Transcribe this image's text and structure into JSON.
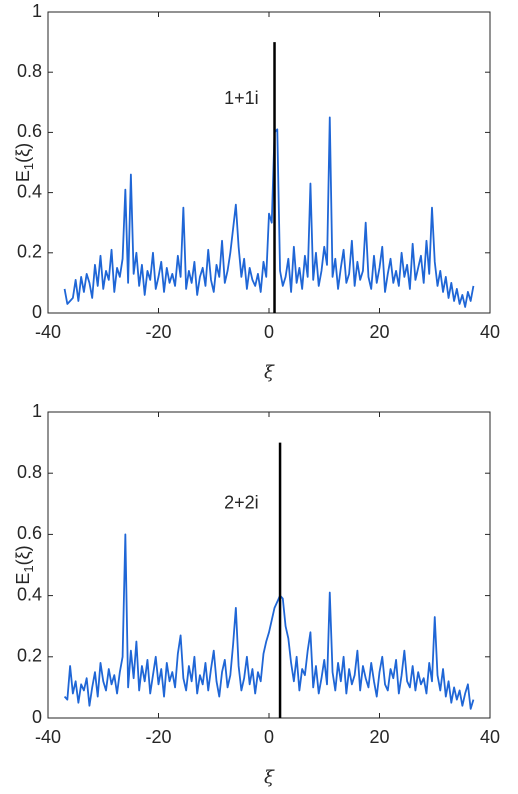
{
  "chart_data": [
    {
      "type": "line",
      "xlabel": "ξ",
      "ylabel": [
        "E",
        "1",
        "(ξ)"
      ],
      "annotation": {
        "text": "1+1i",
        "x": -5,
        "y": 0.71
      },
      "xlim": [
        -40,
        40
      ],
      "xticks": [
        -40,
        -20,
        0,
        20,
        40
      ],
      "ylim": [
        0,
        1
      ],
      "yticks": [
        0,
        0.2,
        0.4,
        0.6,
        0.8,
        1
      ],
      "x": [
        -37,
        -36.5,
        -36,
        -35.5,
        -35,
        -34.5,
        -34,
        -33.5,
        -33,
        -32.5,
        -32,
        -31.5,
        -31,
        -30.5,
        -30,
        -29.5,
        -29,
        -28.5,
        -28,
        -27.5,
        -27,
        -26.5,
        -26,
        -25.5,
        -25,
        -24.5,
        -24,
        -23.5,
        -23,
        -22.5,
        -22,
        -21.5,
        -21,
        -20.5,
        -20,
        -19.5,
        -19,
        -18.5,
        -18,
        -17.5,
        -17,
        -16.5,
        -16,
        -15.5,
        -15,
        -14.5,
        -14,
        -13.5,
        -13,
        -12.5,
        -12,
        -11.5,
        -11,
        -10.5,
        -10,
        -9.5,
        -9,
        -8.5,
        -8,
        -7.5,
        -7,
        -6.5,
        -6,
        -5.5,
        -5,
        -4.5,
        -4,
        -3.5,
        -3,
        -2.5,
        -2,
        -1.5,
        -1,
        -0.5,
        0,
        0.5,
        1,
        1.5,
        2,
        2.5,
        3,
        3.5,
        4,
        4.5,
        5,
        5.5,
        6,
        6.5,
        7,
        7.5,
        8,
        8.5,
        9,
        9.5,
        10,
        10.5,
        11,
        11.5,
        12,
        12.5,
        13,
        13.5,
        14,
        14.5,
        15,
        15.5,
        16,
        16.5,
        17,
        17.5,
        18,
        18.5,
        19,
        19.5,
        20,
        20.5,
        21,
        21.5,
        22,
        22.5,
        23,
        23.5,
        24,
        24.5,
        25,
        25.5,
        26,
        26.5,
        27,
        27.5,
        28,
        28.5,
        29,
        29.5,
        30,
        30.5,
        31,
        31.5,
        32,
        32.5,
        33,
        33.5,
        34,
        34.5,
        35,
        35.5,
        36,
        36.5,
        37
      ],
      "series": [
        {
          "color": "#1f66d6",
          "values": [
            0.08,
            0.03,
            0.04,
            0.05,
            0.11,
            0.04,
            0.12,
            0.07,
            0.13,
            0.1,
            0.05,
            0.16,
            0.09,
            0.19,
            0.08,
            0.14,
            0.11,
            0.21,
            0.07,
            0.15,
            0.12,
            0.18,
            0.41,
            0.1,
            0.46,
            0.13,
            0.2,
            0.09,
            0.16,
            0.06,
            0.14,
            0.11,
            0.2,
            0.08,
            0.12,
            0.17,
            0.07,
            0.15,
            0.1,
            0.13,
            0.09,
            0.19,
            0.12,
            0.35,
            0.08,
            0.14,
            0.1,
            0.17,
            0.06,
            0.12,
            0.15,
            0.09,
            0.21,
            0.11,
            0.07,
            0.16,
            0.12,
            0.24,
            0.1,
            0.14,
            0.2,
            0.28,
            0.36,
            0.22,
            0.12,
            0.18,
            0.08,
            0.15,
            0.11,
            0.09,
            0.13,
            0.07,
            0.17,
            0.12,
            0.33,
            0.3,
            0.6,
            0.61,
            0.14,
            0.09,
            0.12,
            0.18,
            0.07,
            0.22,
            0.1,
            0.15,
            0.08,
            0.19,
            0.12,
            0.43,
            0.11,
            0.2,
            0.09,
            0.14,
            0.22,
            0.16,
            0.65,
            0.12,
            0.18,
            0.08,
            0.15,
            0.21,
            0.1,
            0.13,
            0.24,
            0.09,
            0.17,
            0.11,
            0.14,
            0.3,
            0.12,
            0.08,
            0.19,
            0.1,
            0.15,
            0.22,
            0.07,
            0.13,
            0.18,
            0.1,
            0.14,
            0.09,
            0.2,
            0.12,
            0.16,
            0.08,
            0.23,
            0.11,
            0.15,
            0.19,
            0.1,
            0.24,
            0.13,
            0.35,
            0.17,
            0.09,
            0.14,
            0.07,
            0.12,
            0.05,
            0.1,
            0.04,
            0.08,
            0.03,
            0.06,
            0.02,
            0.07,
            0.04,
            0.09
          ]
        },
        {
          "color": "#000000",
          "x": [
            1,
            1
          ],
          "values": [
            0,
            0.9
          ]
        }
      ]
    },
    {
      "type": "line",
      "xlabel": "ξ",
      "ylabel": [
        "E",
        "1",
        "(ξ)"
      ],
      "annotation": {
        "text": "2+2i",
        "x": -5,
        "y": 0.7
      },
      "xlim": [
        -40,
        40
      ],
      "xticks": [
        -40,
        -20,
        0,
        20,
        40
      ],
      "ylim": [
        0,
        1
      ],
      "yticks": [
        0,
        0.2,
        0.4,
        0.6,
        0.8,
        1
      ],
      "x": [
        -37,
        -36.5,
        -36,
        -35.5,
        -35,
        -34.5,
        -34,
        -33.5,
        -33,
        -32.5,
        -32,
        -31.5,
        -31,
        -30.5,
        -30,
        -29.5,
        -29,
        -28.5,
        -28,
        -27.5,
        -27,
        -26.5,
        -26,
        -25.5,
        -25,
        -24.5,
        -24,
        -23.5,
        -23,
        -22.5,
        -22,
        -21.5,
        -21,
        -20.5,
        -20,
        -19.5,
        -19,
        -18.5,
        -18,
        -17.5,
        -17,
        -16.5,
        -16,
        -15.5,
        -15,
        -14.5,
        -14,
        -13.5,
        -13,
        -12.5,
        -12,
        -11.5,
        -11,
        -10.5,
        -10,
        -9.5,
        -9,
        -8.5,
        -8,
        -7.5,
        -7,
        -6.5,
        -6,
        -5.5,
        -5,
        -4.5,
        -4,
        -3.5,
        -3,
        -2.5,
        -2,
        -1.5,
        -1,
        -0.5,
        0,
        0.5,
        1,
        1.5,
        2,
        2.5,
        3,
        3.5,
        4,
        4.5,
        5,
        5.5,
        6,
        6.5,
        7,
        7.5,
        8,
        8.5,
        9,
        9.5,
        10,
        10.5,
        11,
        11.5,
        12,
        12.5,
        13,
        13.5,
        14,
        14.5,
        15,
        15.5,
        16,
        16.5,
        17,
        17.5,
        18,
        18.5,
        19,
        19.5,
        20,
        20.5,
        21,
        21.5,
        22,
        22.5,
        23,
        23.5,
        24,
        24.5,
        25,
        25.5,
        26,
        26.5,
        27,
        27.5,
        28,
        28.5,
        29,
        29.5,
        30,
        30.5,
        31,
        31.5,
        32,
        32.5,
        33,
        33.5,
        34,
        34.5,
        35,
        35.5,
        36,
        36.5,
        37
      ],
      "series": [
        {
          "color": "#1f66d6",
          "values": [
            0.07,
            0.06,
            0.17,
            0.08,
            0.12,
            0.05,
            0.11,
            0.09,
            0.13,
            0.04,
            0.1,
            0.15,
            0.07,
            0.18,
            0.12,
            0.09,
            0.16,
            0.11,
            0.14,
            0.08,
            0.15,
            0.2,
            0.6,
            0.1,
            0.22,
            0.13,
            0.25,
            0.09,
            0.17,
            0.12,
            0.19,
            0.08,
            0.14,
            0.2,
            0.11,
            0.16,
            0.07,
            0.18,
            0.12,
            0.15,
            0.1,
            0.21,
            0.27,
            0.13,
            0.09,
            0.17,
            0.12,
            0.2,
            0.08,
            0.14,
            0.11,
            0.18,
            0.09,
            0.16,
            0.22,
            0.12,
            0.07,
            0.15,
            0.19,
            0.1,
            0.14,
            0.24,
            0.36,
            0.17,
            0.09,
            0.13,
            0.2,
            0.11,
            0.16,
            0.08,
            0.15,
            0.12,
            0.21,
            0.25,
            0.28,
            0.32,
            0.36,
            0.38,
            0.4,
            0.39,
            0.3,
            0.26,
            0.18,
            0.12,
            0.2,
            0.09,
            0.16,
            0.14,
            0.22,
            0.28,
            0.1,
            0.17,
            0.08,
            0.13,
            0.19,
            0.11,
            0.41,
            0.15,
            0.09,
            0.18,
            0.12,
            0.2,
            0.08,
            0.16,
            0.11,
            0.14,
            0.22,
            0.09,
            0.17,
            0.13,
            0.1,
            0.18,
            0.12,
            0.07,
            0.15,
            0.2,
            0.11,
            0.09,
            0.16,
            0.13,
            0.19,
            0.08,
            0.14,
            0.22,
            0.12,
            0.1,
            0.17,
            0.09,
            0.15,
            0.11,
            0.13,
            0.08,
            0.18,
            0.12,
            0.33,
            0.14,
            0.09,
            0.16,
            0.07,
            0.12,
            0.05,
            0.1,
            0.06,
            0.09,
            0.04,
            0.08,
            0.11,
            0.03,
            0.06
          ]
        },
        {
          "color": "#000000",
          "x": [
            2,
            2
          ],
          "values": [
            0,
            0.9
          ]
        }
      ]
    }
  ]
}
